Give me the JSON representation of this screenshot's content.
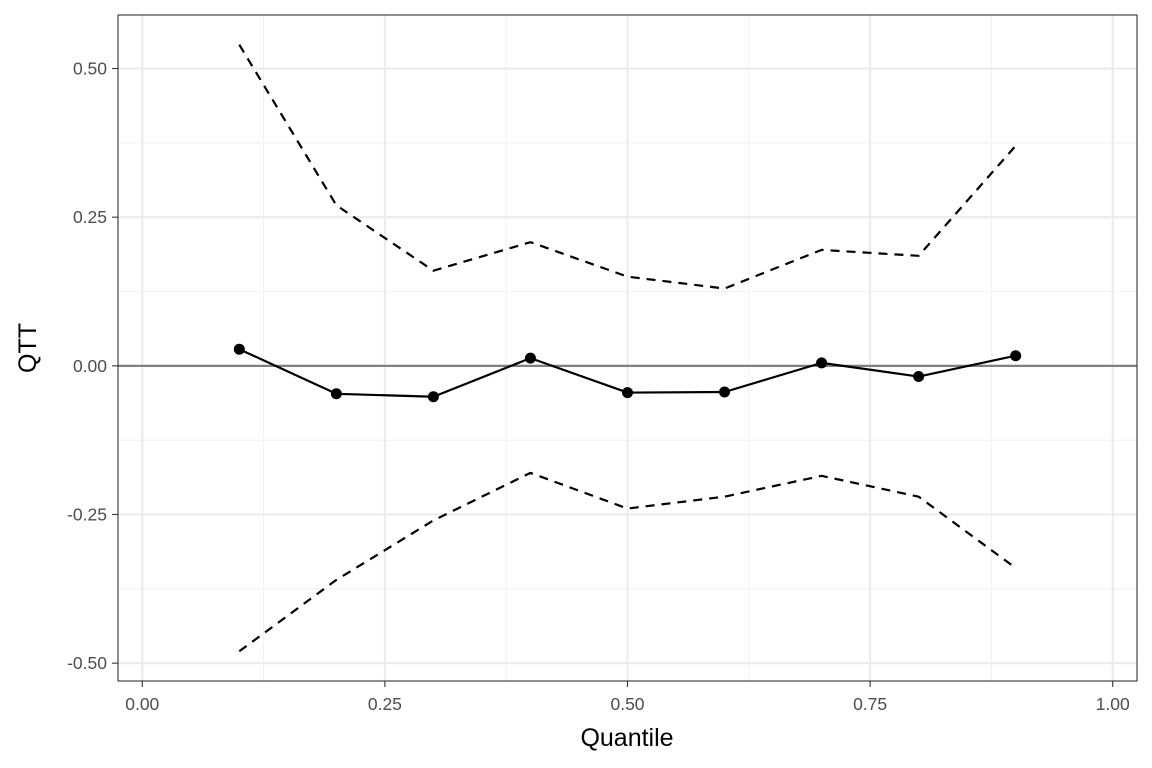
{
  "chart_data": {
    "type": "line",
    "title": "",
    "xlabel": "Quantile",
    "ylabel": "QTT",
    "xlim": [
      -0.025,
      1.025
    ],
    "ylim": [
      -0.53,
      0.59
    ],
    "x_ticks": [
      0.0,
      0.25,
      0.5,
      0.75,
      1.0
    ],
    "x_tick_labels": [
      "0.00",
      "0.25",
      "0.50",
      "0.75",
      "1.00"
    ],
    "y_ticks": [
      -0.5,
      -0.25,
      0.0,
      0.25,
      0.5
    ],
    "y_tick_labels": [
      "-0.50",
      "-0.25",
      "0.00",
      "0.25",
      "0.50"
    ],
    "grid": true,
    "reference_line_y": 0.0,
    "x": [
      0.1,
      0.2,
      0.3,
      0.4,
      0.5,
      0.6,
      0.7,
      0.8,
      0.9
    ],
    "series": [
      {
        "values": [
          0.028,
          -0.047,
          -0.052,
          0.013,
          -0.045,
          -0.044,
          0.005,
          -0.018,
          0.017
        ],
        "style": "solid",
        "markers": true
      },
      {
        "values": [
          0.54,
          0.27,
          0.16,
          0.208,
          0.15,
          0.13,
          0.195,
          0.185,
          0.37
        ],
        "style": "dashed",
        "markers": false
      },
      {
        "values": [
          -0.48,
          -0.36,
          -0.26,
          -0.18,
          -0.24,
          -0.22,
          -0.185,
          -0.22,
          -0.34
        ],
        "style": "dashed",
        "markers": false
      }
    ],
    "colors": {
      "line": "#000000",
      "reference": "#808080",
      "grid_major": "#ebebeb",
      "grid_minor": "#f2f2f2",
      "panel_border": "#333333"
    }
  }
}
